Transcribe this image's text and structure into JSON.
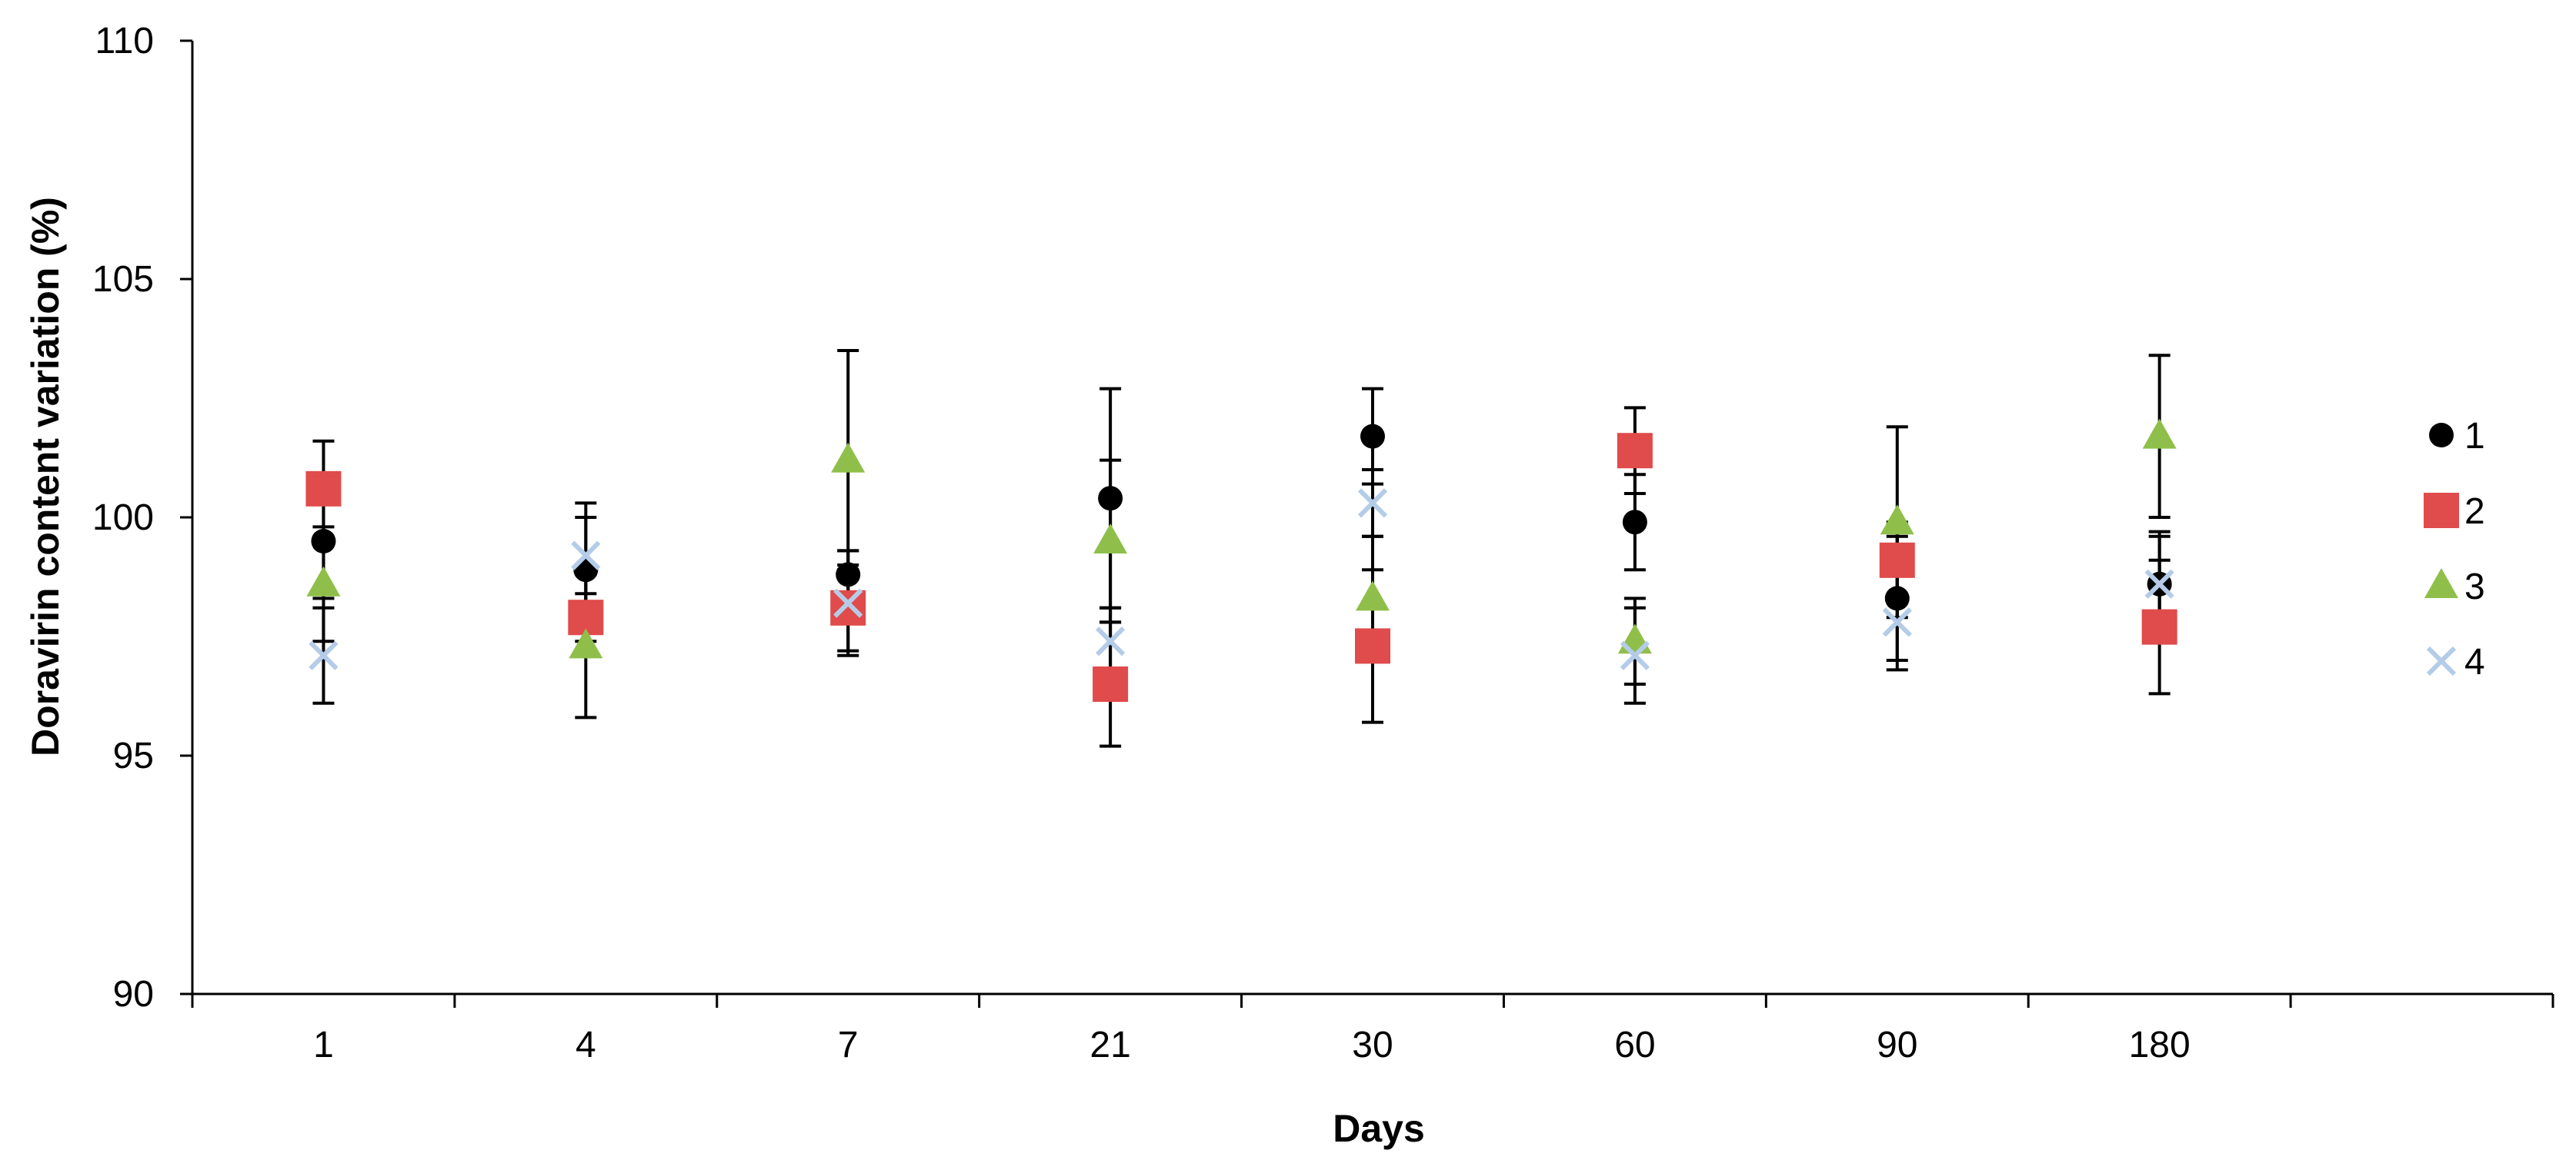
{
  "chart_data": {
    "type": "scatter",
    "title": "",
    "xlabel": "Days",
    "ylabel": "Doravirin content variation (%)",
    "categories": [
      "1",
      "4",
      "7",
      "21",
      "30",
      "60",
      "90",
      "180"
    ],
    "ylim": [
      90,
      110
    ],
    "yticks": [
      90,
      95,
      100,
      105,
      110
    ],
    "grid": false,
    "legend_position": "right",
    "series": [
      {
        "name": "1",
        "marker": "circle",
        "color": "#000000",
        "values": [
          99.5,
          98.9,
          98.8,
          100.4,
          101.7,
          99.9,
          98.3,
          98.6
        ],
        "error": [
          1.2,
          1.1,
          0.5,
          2.3,
          1.0,
          1.0,
          1.3,
          1.1
        ]
      },
      {
        "name": "2",
        "marker": "square",
        "color": "#e04b4b",
        "values": [
          100.6,
          97.9,
          98.1,
          96.5,
          97.3,
          101.4,
          99.1,
          97.7
        ],
        "error": [
          1.0,
          0.5,
          0.9,
          1.3,
          1.6,
          0.9,
          0.8,
          1.4
        ]
      },
      {
        "name": "3",
        "marker": "triangle",
        "color": "#8fbf4a",
        "values": [
          98.6,
          97.3,
          101.2,
          99.5,
          98.3,
          97.4,
          99.9,
          101.7
        ],
        "error": [
          1.2,
          1.5,
          2.3,
          1.7,
          1.3,
          0.9,
          2.0,
          1.7
        ]
      },
      {
        "name": "4",
        "marker": "x",
        "color": "#b4cce8",
        "values": [
          97.1,
          99.2,
          98.2,
          97.4,
          100.3,
          97.1,
          97.8,
          98.6
        ],
        "error": [
          1.0,
          1.1,
          1.1,
          0.7,
          0.7,
          1.0,
          1.0,
          1.0
        ]
      }
    ]
  }
}
